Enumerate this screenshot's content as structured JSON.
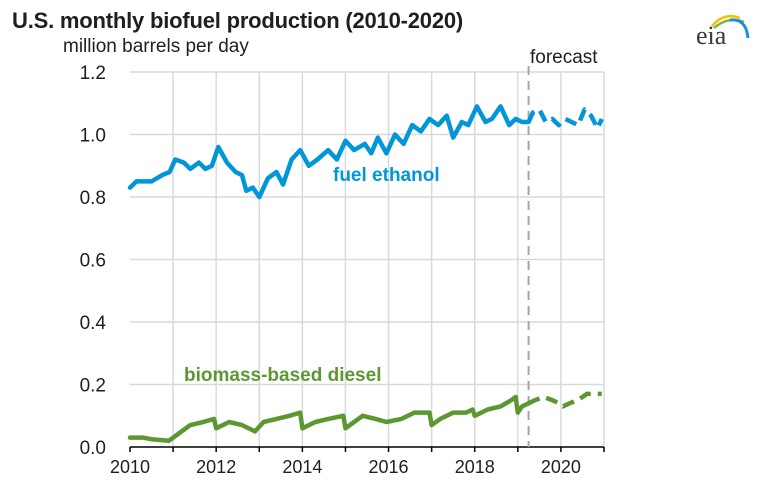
{
  "header": {
    "title": "U.S. monthly biofuel production (2010-2020)",
    "units": "million barrels per day",
    "logo_text": "eia"
  },
  "annotations": {
    "forecast": "forecast",
    "ethanol_label": "fuel ethanol",
    "diesel_label": "biomass-based diesel"
  },
  "colors": {
    "ethanol": "#0096D7",
    "diesel": "#5D9732",
    "grid": "#D9D9D9",
    "axis": "#000000",
    "forecast_line": "#A6A6A6"
  },
  "chart_data": {
    "type": "line",
    "title": "U.S. monthly biofuel production (2010-2020)",
    "xlabel": "",
    "ylabel": "million barrels per day",
    "xlim": [
      2010,
      2021
    ],
    "ylim": [
      0.0,
      1.2
    ],
    "y_ticks": [
      "0.0",
      "0.2",
      "0.4",
      "0.6",
      "0.8",
      "1.0",
      "1.2"
    ],
    "x_ticks": [
      "2010",
      "2012",
      "2014",
      "2016",
      "2018",
      "2020"
    ],
    "grid": true,
    "forecast_start": 2019.25,
    "series": [
      {
        "name": "fuel ethanol",
        "color": "#0096D7",
        "x": [
          2010.0,
          2010.15,
          2010.5,
          2010.75,
          2010.92,
          2011.05,
          2011.25,
          2011.4,
          2011.6,
          2011.75,
          2011.9,
          2012.05,
          2012.25,
          2012.45,
          2012.6,
          2012.7,
          2012.85,
          2013.0,
          2013.2,
          2013.4,
          2013.55,
          2013.75,
          2013.95,
          2014.15,
          2014.35,
          2014.6,
          2014.8,
          2015.0,
          2015.2,
          2015.45,
          2015.6,
          2015.75,
          2015.95,
          2016.15,
          2016.35,
          2016.55,
          2016.75,
          2016.95,
          2017.15,
          2017.35,
          2017.5,
          2017.7,
          2017.85,
          2018.05,
          2018.25,
          2018.4,
          2018.6,
          2018.8,
          2018.95,
          2019.1,
          2019.25,
          2019.35,
          2019.5,
          2019.65,
          2019.8,
          2019.95,
          2020.1,
          2020.25,
          2020.4,
          2020.55,
          2020.7,
          2020.85,
          2020.95
        ],
        "values": [
          0.83,
          0.85,
          0.85,
          0.87,
          0.88,
          0.92,
          0.91,
          0.89,
          0.91,
          0.89,
          0.9,
          0.96,
          0.91,
          0.88,
          0.87,
          0.82,
          0.83,
          0.8,
          0.86,
          0.88,
          0.84,
          0.92,
          0.95,
          0.9,
          0.92,
          0.95,
          0.92,
          0.98,
          0.95,
          0.97,
          0.94,
          0.99,
          0.94,
          1.0,
          0.97,
          1.03,
          1.01,
          1.05,
          1.03,
          1.06,
          0.99,
          1.04,
          1.03,
          1.09,
          1.04,
          1.05,
          1.09,
          1.03,
          1.05,
          1.04,
          1.04,
          1.07,
          1.08,
          1.04,
          1.05,
          1.03,
          1.05,
          1.04,
          1.03,
          1.08,
          1.06,
          1.02,
          1.05
        ]
      },
      {
        "name": "biomass-based diesel",
        "color": "#5D9732",
        "x": [
          2010.0,
          2010.3,
          2010.5,
          2010.9,
          2011.1,
          2011.4,
          2011.7,
          2011.95,
          2012.0,
          2012.3,
          2012.6,
          2012.9,
          2013.1,
          2013.4,
          2013.7,
          2013.95,
          2014.0,
          2014.3,
          2014.6,
          2014.95,
          2015.0,
          2015.2,
          2015.4,
          2015.7,
          2015.95,
          2016.3,
          2016.6,
          2016.95,
          2017.0,
          2017.2,
          2017.5,
          2017.8,
          2017.95,
          2018.0,
          2018.3,
          2018.6,
          2018.85,
          2018.95,
          2019.0,
          2019.1,
          2019.25,
          2019.4,
          2019.6,
          2019.8,
          2019.95,
          2020.05,
          2020.2,
          2020.4,
          2020.6,
          2020.8,
          2020.95
        ],
        "values": [
          0.03,
          0.03,
          0.025,
          0.02,
          0.04,
          0.07,
          0.08,
          0.09,
          0.06,
          0.08,
          0.07,
          0.05,
          0.08,
          0.09,
          0.1,
          0.11,
          0.06,
          0.08,
          0.09,
          0.1,
          0.06,
          0.08,
          0.1,
          0.09,
          0.08,
          0.09,
          0.11,
          0.11,
          0.07,
          0.09,
          0.11,
          0.11,
          0.12,
          0.1,
          0.12,
          0.13,
          0.15,
          0.16,
          0.11,
          0.13,
          0.14,
          0.15,
          0.16,
          0.15,
          0.14,
          0.13,
          0.14,
          0.15,
          0.17,
          0.17,
          0.17
        ]
      }
    ]
  }
}
